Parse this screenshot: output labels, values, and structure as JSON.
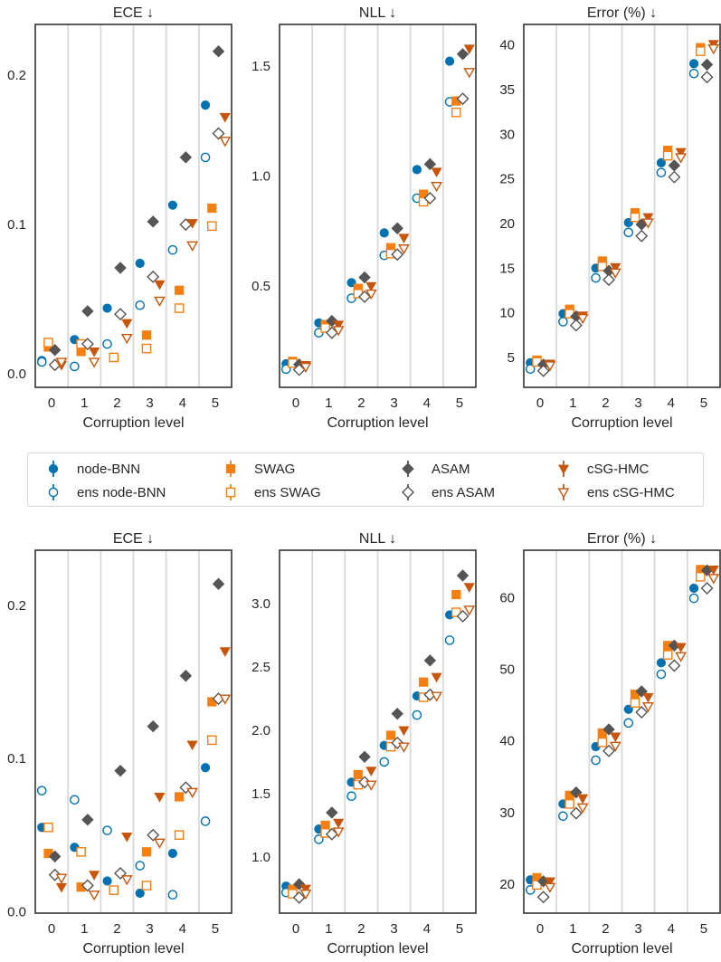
{
  "colors": {
    "node-BNN": "#0072b2",
    "SWAG": "#f77f10",
    "ASAM": "#555555",
    "cSG-HMC": "#c8560a",
    "grid": "#d9d9d9",
    "frame": "#333333"
  },
  "legend": {
    "placement": "center",
    "items": [
      {
        "label": "node-BNN",
        "method": "node-BNN",
        "marker": "circle",
        "filled": true
      },
      {
        "label": "ens node-BNN",
        "method": "node-BNN",
        "marker": "circle",
        "filled": false
      },
      {
        "label": "SWAG",
        "method": "SWAG",
        "marker": "square",
        "filled": true
      },
      {
        "label": "ens SWAG",
        "method": "SWAG",
        "marker": "square",
        "filled": false
      },
      {
        "label": "ASAM",
        "method": "ASAM",
        "marker": "diamond",
        "filled": true
      },
      {
        "label": "ens ASAM",
        "method": "ASAM",
        "marker": "diamond",
        "filled": false
      },
      {
        "label": "cSG-HMC",
        "method": "cSG-HMC",
        "marker": "triangle-down",
        "filled": true
      },
      {
        "label": "ens cSG-HMC",
        "method": "cSG-HMC",
        "marker": "triangle-down",
        "filled": false
      }
    ]
  },
  "chart_data": [
    {
      "type": "scatter",
      "row": "top",
      "title": "ECE ↓",
      "xlabel": "Corruption level",
      "categories": [
        "0",
        "1",
        "2",
        "3",
        "4",
        "5"
      ],
      "yticks": [
        "0.0",
        "0.1",
        "0.2"
      ],
      "ylim": [
        -0.009,
        0.234
      ],
      "grid": "vertical separators",
      "series": [
        {
          "name": "node-BNN",
          "values": [
            0.009,
            0.023,
            0.044,
            0.074,
            0.113,
            0.18
          ]
        },
        {
          "name": "ens node-BNN",
          "values": [
            0.008,
            0.005,
            0.02,
            0.046,
            0.083,
            0.145
          ]
        },
        {
          "name": "SWAG",
          "values": [
            0.018,
            0.015,
            0.011,
            0.026,
            0.056,
            0.111
          ]
        },
        {
          "name": "ens SWAG",
          "values": [
            0.021,
            0.02,
            0.011,
            0.017,
            0.044,
            0.099
          ]
        },
        {
          "name": "ASAM",
          "values": [
            0.016,
            0.042,
            0.071,
            0.102,
            0.145,
            0.216
          ]
        },
        {
          "name": "ens ASAM",
          "values": [
            0.006,
            0.02,
            0.04,
            0.065,
            0.1,
            0.161
          ]
        },
        {
          "name": "cSG-HMC",
          "values": [
            0.006,
            0.015,
            0.034,
            0.06,
            0.101,
            0.172
          ]
        },
        {
          "name": "ens cSG-HMC",
          "values": [
            0.008,
            0.008,
            0.024,
            0.049,
            0.086,
            0.156
          ]
        }
      ]
    },
    {
      "type": "scatter",
      "row": "top",
      "title": "NLL ↓",
      "xlabel": "Corruption level",
      "categories": [
        "0",
        "1",
        "2",
        "3",
        "4",
        "5"
      ],
      "yticks": [
        "0.5",
        "1.0",
        "1.5"
      ],
      "ylim": [
        0.04,
        1.69
      ],
      "grid": "vertical separators",
      "series": [
        {
          "name": "node-BNN",
          "values": [
            0.147,
            0.333,
            0.516,
            0.742,
            1.03,
            1.523
          ]
        },
        {
          "name": "ens node-BNN",
          "values": [
            0.123,
            0.288,
            0.445,
            0.64,
            0.9,
            1.338
          ]
        },
        {
          "name": "SWAG",
          "values": [
            0.158,
            0.325,
            0.49,
            0.675,
            0.918,
            1.342
          ]
        },
        {
          "name": "ens SWAG",
          "values": [
            0.15,
            0.31,
            0.466,
            0.648,
            0.884,
            1.29
          ]
        },
        {
          "name": "ASAM",
          "values": [
            0.144,
            0.342,
            0.54,
            0.763,
            1.055,
            1.555
          ]
        },
        {
          "name": "ens ASAM",
          "values": [
            0.12,
            0.288,
            0.452,
            0.644,
            0.9,
            1.352
          ]
        },
        {
          "name": "cSG-HMC",
          "values": [
            0.141,
            0.325,
            0.5,
            0.72,
            1.02,
            1.58
          ]
        },
        {
          "name": "ens cSG-HMC",
          "values": [
            0.133,
            0.3,
            0.466,
            0.671,
            0.955,
            1.473
          ]
        }
      ]
    },
    {
      "type": "scatter",
      "row": "top",
      "title": "Error (%) ↓",
      "xlabel": "Corruption level",
      "categories": [
        "0",
        "1",
        "2",
        "3",
        "4",
        "5"
      ],
      "yticks": [
        "5",
        "10",
        "15",
        "20",
        "25",
        "30",
        "35",
        "40"
      ],
      "ylim": [
        1.65,
        42.3
      ],
      "grid": "vertical separators",
      "series": [
        {
          "name": "node-BNN",
          "values": [
            4.4,
            9.9,
            15.0,
            20.1,
            26.8,
            37.9
          ]
        },
        {
          "name": "ens node-BNN",
          "values": [
            3.7,
            9.0,
            13.9,
            19.0,
            25.7,
            36.8
          ]
        },
        {
          "name": "SWAG",
          "values": [
            4.7,
            10.4,
            15.8,
            21.2,
            28.2,
            39.7
          ]
        },
        {
          "name": "ens SWAG",
          "values": [
            4.5,
            9.9,
            15.2,
            20.7,
            27.6,
            39.3
          ]
        },
        {
          "name": "ASAM",
          "values": [
            4.2,
            9.6,
            14.7,
            19.9,
            26.5,
            37.8
          ]
        },
        {
          "name": "ens ASAM",
          "values": [
            3.5,
            8.6,
            13.7,
            18.6,
            25.2,
            36.4
          ]
        },
        {
          "name": "cSG-HMC",
          "values": [
            4.3,
            9.7,
            15.1,
            20.7,
            28.0,
            40.1
          ]
        },
        {
          "name": "ens cSG-HMC",
          "values": [
            4.1,
            9.4,
            14.5,
            20.1,
            27.4,
            39.6
          ]
        }
      ]
    },
    {
      "type": "scatter",
      "row": "bottom",
      "title": "ECE ↓",
      "xlabel": "Corruption level",
      "categories": [
        "0",
        "1",
        "2",
        "3",
        "4",
        "5"
      ],
      "yticks": [
        "0.0",
        "0.1",
        "0.2"
      ],
      "ylim": [
        -0.001,
        0.236
      ],
      "grid": "vertical separators",
      "series": [
        {
          "name": "node-BNN",
          "values": [
            0.055,
            0.042,
            0.02,
            0.012,
            0.038,
            0.094
          ]
        },
        {
          "name": "ens node-BNN",
          "values": [
            0.079,
            0.073,
            0.053,
            0.03,
            0.011,
            0.059
          ]
        },
        {
          "name": "SWAG",
          "values": [
            0.038,
            0.016,
            0.014,
            0.039,
            0.075,
            0.137
          ]
        },
        {
          "name": "ens SWAG",
          "values": [
            0.055,
            0.039,
            0.014,
            0.017,
            0.05,
            0.112
          ]
        },
        {
          "name": "ASAM",
          "values": [
            0.036,
            0.06,
            0.092,
            0.121,
            0.154,
            0.214
          ]
        },
        {
          "name": "ens ASAM",
          "values": [
            0.024,
            0.017,
            0.025,
            0.05,
            0.081,
            0.139
          ]
        },
        {
          "name": "cSG-HMC",
          "values": [
            0.016,
            0.024,
            0.049,
            0.075,
            0.109,
            0.17
          ]
        },
        {
          "name": "ens cSG-HMC",
          "values": [
            0.022,
            0.011,
            0.021,
            0.045,
            0.078,
            0.139
          ]
        }
      ]
    },
    {
      "type": "scatter",
      "row": "bottom",
      "title": "NLL ↓",
      "xlabel": "Corruption level",
      "categories": [
        "0",
        "1",
        "2",
        "3",
        "4",
        "5"
      ],
      "yticks": [
        "1.0",
        "1.5",
        "2.0",
        "2.5",
        "3.0"
      ],
      "ylim": [
        0.557,
        3.42
      ],
      "grid": "vertical separators",
      "series": [
        {
          "name": "node-BNN",
          "values": [
            0.77,
            1.22,
            1.59,
            1.88,
            2.27,
            2.91
          ]
        },
        {
          "name": "ens node-BNN",
          "values": [
            0.72,
            1.14,
            1.48,
            1.75,
            2.12,
            2.71
          ]
        },
        {
          "name": "SWAG",
          "values": [
            0.745,
            1.25,
            1.65,
            1.96,
            2.38,
            3.07
          ]
        },
        {
          "name": "ens SWAG",
          "values": [
            0.71,
            1.19,
            1.57,
            1.87,
            2.26,
            2.93
          ]
        },
        {
          "name": "ASAM",
          "values": [
            0.785,
            1.35,
            1.79,
            2.13,
            2.55,
            3.22
          ]
        },
        {
          "name": "ens ASAM",
          "values": [
            0.68,
            1.18,
            1.59,
            1.9,
            2.28,
            2.9
          ]
        },
        {
          "name": "cSG-HMC",
          "values": [
            0.75,
            1.27,
            1.68,
            2.0,
            2.42,
            3.13
          ]
        },
        {
          "name": "ens cSG-HMC",
          "values": [
            0.71,
            1.2,
            1.57,
            1.87,
            2.27,
            2.95
          ]
        }
      ]
    },
    {
      "type": "scatter",
      "row": "bottom",
      "title": "Error (%) ↓",
      "xlabel": "Corruption level",
      "categories": [
        "0",
        "1",
        "2",
        "3",
        "4",
        "5"
      ],
      "yticks": [
        "20",
        "30",
        "40",
        "50",
        "60"
      ],
      "ylim": [
        15.96,
        66.6
      ],
      "grid": "vertical separators",
      "series": [
        {
          "name": "node-BNN",
          "values": [
            20.6,
            31.2,
            39.2,
            44.4,
            50.9,
            61.3
          ]
        },
        {
          "name": "ens node-BNN",
          "values": [
            19.2,
            29.5,
            37.3,
            42.5,
            49.3,
            59.9
          ]
        },
        {
          "name": "SWAG",
          "values": [
            20.9,
            32.4,
            41.1,
            46.5,
            53.3,
            63.9
          ]
        },
        {
          "name": "ens SWAG",
          "values": [
            19.9,
            31.2,
            39.8,
            45.3,
            52.0,
            62.9
          ]
        },
        {
          "name": "ASAM",
          "values": [
            20.4,
            32.8,
            41.6,
            46.9,
            53.3,
            63.8
          ]
        },
        {
          "name": "ens ASAM",
          "values": [
            18.2,
            29.9,
            38.6,
            44.0,
            50.5,
            61.3
          ]
        },
        {
          "name": "cSG-HMC",
          "values": [
            20.4,
            32.0,
            40.6,
            46.1,
            53.1,
            63.9
          ]
        },
        {
          "name": "ens cSG-HMC",
          "values": [
            19.6,
            30.7,
            39.3,
            44.8,
            51.8,
            62.7
          ]
        }
      ]
    }
  ]
}
